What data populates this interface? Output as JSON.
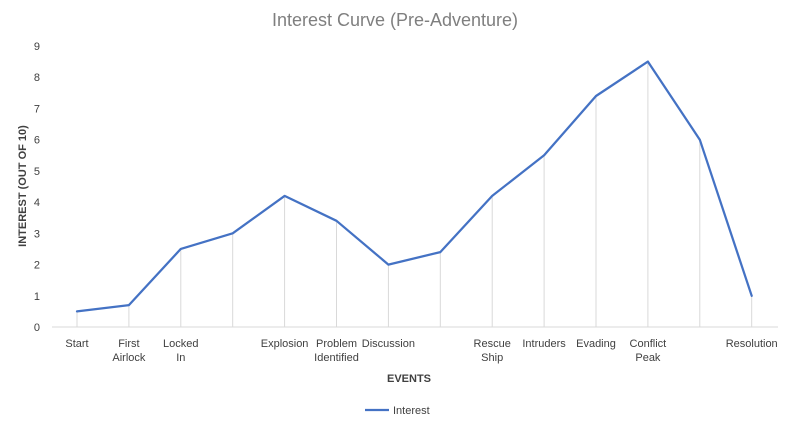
{
  "chart_data": {
    "type": "line",
    "title": "Interest Curve (Pre-Adventure)",
    "xlabel": "EVENTS",
    "ylabel": "INTEREST (OUT OF 10)",
    "ylim": [
      0,
      9
    ],
    "yticks": [
      "0",
      "1",
      "2",
      "3",
      "4",
      "5",
      "6",
      "7",
      "8",
      "9"
    ],
    "categories": [
      [
        "Start"
      ],
      [
        "First",
        "Airlock"
      ],
      [
        "Locked",
        "In"
      ],
      [
        ""
      ],
      [
        "Explosion"
      ],
      [
        "Problem",
        "Identified"
      ],
      [
        "Discussion"
      ],
      [
        ""
      ],
      [
        "Rescue",
        "Ship"
      ],
      [
        "Intruders"
      ],
      [
        "Evading"
      ],
      [
        "Conflict",
        "Peak"
      ],
      [
        ""
      ],
      [
        "Resolution"
      ]
    ],
    "series": [
      {
        "name": "Interest",
        "color": "#4472c4",
        "values": [
          0.5,
          0.7,
          2.5,
          3.0,
          4.2,
          3.4,
          2.0,
          2.4,
          4.2,
          5.5,
          7.4,
          8.5,
          6.0,
          1.0
        ]
      }
    ],
    "grid": "vertical-drop-lines",
    "legend": "bottom"
  }
}
